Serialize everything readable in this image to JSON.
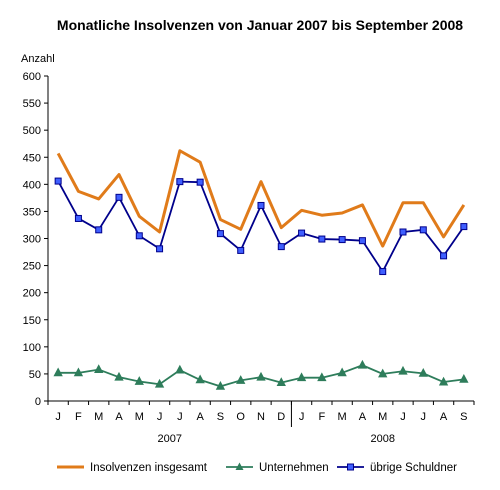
{
  "chart_data": {
    "type": "line",
    "title": "Monatliche Insolvenzen von Januar 2007 bis September 2008",
    "ylabel": "Anzahl",
    "xlabel": "",
    "ylim": [
      0,
      600
    ],
    "y_ticks": [
      0,
      50,
      100,
      150,
      200,
      250,
      300,
      350,
      400,
      450,
      500,
      550,
      600
    ],
    "y_tick_labels": [
      "0",
      "50",
      "100",
      "150",
      "200",
      "250",
      "300",
      "350",
      "400",
      "450",
      "500",
      "550",
      "600"
    ],
    "categories": [
      "J",
      "F",
      "M",
      "A",
      "M",
      "J",
      "J",
      "A",
      "S",
      "O",
      "N",
      "D",
      "J",
      "F",
      "M",
      "A",
      "M",
      "J",
      "J",
      "A",
      "S"
    ],
    "year_groups": [
      {
        "label": "2007",
        "start": 0,
        "end": 11
      },
      {
        "label": "2008",
        "start": 12,
        "end": 20
      }
    ],
    "grid": false,
    "legend_position": "bottom",
    "series": [
      {
        "name": "Insolvenzen insgesamt",
        "color": "#e07b1a",
        "marker": "none",
        "values": [
          457,
          387,
          373,
          418,
          341,
          312,
          462,
          441,
          335,
          317,
          405,
          320,
          352,
          343,
          347,
          362,
          286,
          366,
          366,
          303,
          362
        ]
      },
      {
        "name": "Unternehmen",
        "color": "#2e7d5b",
        "marker": "triangle",
        "values": [
          52,
          52,
          58,
          44,
          36,
          31,
          57,
          39,
          27,
          38,
          44,
          34,
          43,
          43,
          52,
          66,
          50,
          55,
          51,
          35,
          40
        ]
      },
      {
        "name": "übrige Schuldner",
        "color": "#00008b",
        "marker_fill": "#3f5fff",
        "marker": "square",
        "values": [
          406,
          337,
          316,
          376,
          305,
          281,
          405,
          404,
          309,
          278,
          361,
          285,
          310,
          299,
          298,
          296,
          239,
          312,
          316,
          268,
          322
        ]
      }
    ]
  }
}
